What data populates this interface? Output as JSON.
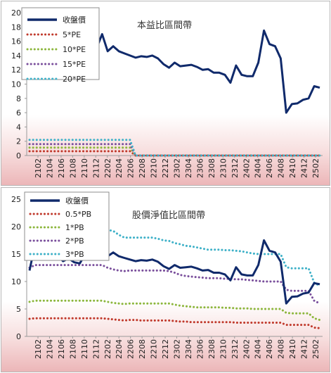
{
  "chart_data": [
    {
      "type": "line",
      "title": "本益比區間帶",
      "ylim": [
        0,
        20
      ],
      "yticks": [
        "0",
        "2",
        "4",
        "6",
        "8",
        "10",
        "12",
        "14",
        "16",
        "18",
        "20"
      ],
      "x_tick_labels": [
        "2102",
        "2104",
        "2106",
        "2108",
        "2110",
        "2112",
        "2202",
        "2204",
        "2206",
        "2208",
        "2210",
        "2212",
        "2302",
        "2304",
        "2306",
        "2308",
        "2310",
        "2312",
        "2402",
        "2404",
        "2406",
        "2408",
        "2410",
        "2412",
        "2502"
      ],
      "legend_position": "top-left",
      "grid": false,
      "series": [
        {
          "name": "收盤價",
          "color": "#102a6b",
          "style": "solid",
          "values": [
            12.0,
            16.8,
            15.5,
            15.2,
            14.2,
            14.8,
            13.7,
            14.2,
            13.5,
            13.3,
            15.0,
            15.5,
            15.0,
            17.0,
            14.6,
            15.3,
            14.6,
            14.3,
            14.0,
            13.7,
            13.9,
            13.8,
            14.0,
            13.6,
            12.8,
            12.3,
            13.0,
            12.5,
            12.6,
            12.7,
            12.4,
            12.0,
            12.1,
            11.6,
            11.6,
            11.3,
            10.2,
            12.6,
            11.3,
            11.1,
            11.1,
            13.0,
            17.5,
            15.6,
            15.3,
            13.6,
            6.0,
            7.2,
            7.3,
            7.8,
            8.0,
            9.7,
            9.5
          ]
        },
        {
          "name": "5*PE",
          "color": "#c0392b",
          "style": "dotted",
          "values": [
            0.6,
            0.6,
            0.6,
            0.6,
            0.6,
            0.6,
            0.6,
            0.6,
            0.6,
            0.6,
            0.6,
            0.6,
            0.6,
            0.6,
            0.6,
            0.6,
            0.6,
            0.6,
            0.6,
            0,
            0,
            0,
            0,
            0,
            0,
            0,
            0,
            0,
            0,
            0,
            0,
            0,
            0,
            0,
            0,
            0,
            0,
            0,
            0,
            0,
            0,
            0,
            0,
            0,
            0,
            0,
            0,
            0,
            0,
            0,
            0,
            0,
            0
          ]
        },
        {
          "name": "10*PE",
          "color": "#8cb63c",
          "style": "dotted",
          "values": [
            1.1,
            1.1,
            1.1,
            1.1,
            1.1,
            1.1,
            1.1,
            1.1,
            1.1,
            1.1,
            1.1,
            1.1,
            1.1,
            1.1,
            1.1,
            1.1,
            1.1,
            1.1,
            1.1,
            0,
            0,
            0,
            0,
            0,
            0,
            0,
            0,
            0,
            0,
            0,
            0,
            0,
            0,
            0,
            0,
            0,
            0,
            0,
            0,
            0,
            0,
            0,
            0,
            0,
            0,
            0,
            0,
            0,
            0,
            0,
            0,
            0,
            0
          ]
        },
        {
          "name": "15*PE",
          "color": "#7a4f9c",
          "style": "dotted",
          "values": [
            1.6,
            1.6,
            1.6,
            1.6,
            1.6,
            1.6,
            1.6,
            1.6,
            1.6,
            1.6,
            1.6,
            1.6,
            1.6,
            1.6,
            1.6,
            1.6,
            1.6,
            1.6,
            1.6,
            0,
            0,
            0,
            0,
            0,
            0,
            0,
            0,
            0,
            0,
            0,
            0,
            0,
            0,
            0,
            0,
            0,
            0,
            0,
            0,
            0,
            0,
            0,
            0,
            0,
            0,
            0,
            0,
            0,
            0,
            0,
            0,
            0,
            0
          ]
        },
        {
          "name": "20*PE",
          "color": "#3fb1c8",
          "style": "dotted",
          "values": [
            2.2,
            2.2,
            2.2,
            2.2,
            2.2,
            2.2,
            2.2,
            2.2,
            2.2,
            2.2,
            2.2,
            2.2,
            2.2,
            2.2,
            2.2,
            2.2,
            2.2,
            2.2,
            2.2,
            0,
            0,
            0,
            0,
            0,
            0,
            0,
            0,
            0,
            0,
            0,
            0,
            0,
            0,
            0,
            0,
            0,
            0,
            0,
            0,
            0,
            0,
            0,
            0,
            0,
            0,
            0,
            0,
            0,
            0,
            0,
            0,
            0,
            0
          ]
        }
      ]
    },
    {
      "type": "line",
      "title": "股價淨值比區間帶",
      "ylim": [
        0,
        25
      ],
      "yticks": [
        "0",
        "5",
        "10",
        "15",
        "20",
        "25"
      ],
      "x_tick_labels": [
        "2102",
        "2104",
        "2106",
        "2108",
        "2110",
        "2112",
        "2202",
        "2204",
        "2206",
        "2208",
        "2210",
        "2212",
        "2302",
        "2304",
        "2306",
        "2308",
        "2310",
        "2312",
        "2402",
        "2404",
        "2406",
        "2408",
        "2410",
        "2412",
        "2502"
      ],
      "legend_position": "top-left",
      "grid": false,
      "series": [
        {
          "name": "收盤價",
          "color": "#102a6b",
          "style": "solid",
          "values": [
            12.0,
            16.8,
            15.5,
            15.2,
            14.2,
            14.8,
            13.7,
            14.2,
            13.5,
            13.3,
            15.0,
            15.5,
            15.0,
            17.0,
            14.6,
            15.3,
            14.6,
            14.3,
            14.0,
            13.7,
            13.9,
            13.8,
            14.0,
            13.6,
            12.8,
            12.3,
            13.0,
            12.5,
            12.6,
            12.7,
            12.4,
            12.0,
            12.1,
            11.6,
            11.6,
            11.3,
            10.2,
            12.6,
            11.3,
            11.1,
            11.1,
            13.0,
            17.5,
            15.6,
            15.3,
            13.6,
            6.0,
            7.2,
            7.3,
            7.8,
            8.0,
            9.7,
            9.5
          ]
        },
        {
          "name": "0.5*PB",
          "color": "#c0392b",
          "style": "dotted",
          "values": [
            3.2,
            3.3,
            3.3,
            3.3,
            3.3,
            3.3,
            3.3,
            3.3,
            3.3,
            3.3,
            3.3,
            3.3,
            3.3,
            3.3,
            3.2,
            3.1,
            3.0,
            2.9,
            3.0,
            3.0,
            2.9,
            2.9,
            2.9,
            2.9,
            2.9,
            2.9,
            2.8,
            2.7,
            2.7,
            2.6,
            2.6,
            2.6,
            2.6,
            2.6,
            2.6,
            2.6,
            2.6,
            2.5,
            2.5,
            2.5,
            2.5,
            2.5,
            2.5,
            2.5,
            2.5,
            2.5,
            2.1,
            2.1,
            2.1,
            2.1,
            2.1,
            1.6,
            1.5
          ]
        },
        {
          "name": "1*PB",
          "color": "#8cb63c",
          "style": "dotted",
          "values": [
            6.3,
            6.5,
            6.5,
            6.5,
            6.5,
            6.5,
            6.5,
            6.5,
            6.5,
            6.5,
            6.5,
            6.5,
            6.5,
            6.5,
            6.3,
            6.1,
            6.0,
            5.9,
            6.0,
            6.0,
            6.0,
            6.0,
            6.0,
            6.0,
            6.0,
            6.0,
            5.8,
            5.6,
            5.5,
            5.4,
            5.3,
            5.3,
            5.3,
            5.3,
            5.3,
            5.2,
            5.2,
            5.1,
            5.1,
            5.1,
            5.0,
            5.0,
            5.0,
            5.0,
            5.0,
            5.0,
            4.3,
            4.2,
            4.2,
            4.2,
            4.2,
            3.3,
            3.0
          ]
        },
        {
          "name": "2*PB",
          "color": "#7a4f9c",
          "style": "dotted",
          "values": [
            12.5,
            13.0,
            13.0,
            13.0,
            13.0,
            13.0,
            13.0,
            13.0,
            13.0,
            13.0,
            13.0,
            13.0,
            13.0,
            13.0,
            12.5,
            12.2,
            12.0,
            11.9,
            12.0,
            12.0,
            12.0,
            12.0,
            12.0,
            12.0,
            12.0,
            11.9,
            11.6,
            11.2,
            11.0,
            10.9,
            10.8,
            10.7,
            10.6,
            10.6,
            10.6,
            10.5,
            10.5,
            10.4,
            10.4,
            10.3,
            10.2,
            10.1,
            10.0,
            10.0,
            10.0,
            10.0,
            8.5,
            8.3,
            8.3,
            8.3,
            8.3,
            6.5,
            6.0
          ]
        },
        {
          "name": "3*PB",
          "color": "#3fb1c8",
          "style": "dotted",
          "values": [
            18.8,
            19.5,
            19.5,
            19.5,
            19.5,
            19.5,
            19.5,
            19.5,
            19.5,
            19.5,
            19.5,
            19.5,
            19.5,
            19.5,
            19.4,
            19.2,
            18.5,
            18.0,
            18.0,
            18.0,
            18.0,
            18.0,
            18.0,
            17.8,
            17.5,
            17.4,
            17.0,
            16.8,
            16.5,
            16.4,
            16.2,
            16.0,
            15.8,
            15.8,
            15.8,
            15.7,
            15.7,
            15.6,
            15.5,
            15.3,
            15.1,
            15.0,
            15.0,
            15.0,
            15.0,
            15.0,
            12.6,
            12.4,
            12.4,
            12.4,
            12.4,
            9.8,
            9.2
          ]
        }
      ]
    }
  ]
}
